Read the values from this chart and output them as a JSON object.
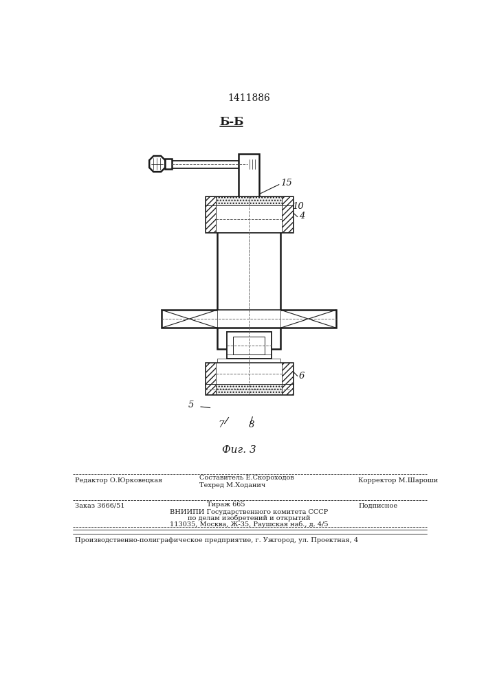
{
  "patent_number": "1411886",
  "section_label": "Б-Б",
  "fig_label": "Фиг. 3",
  "bg_color": "#ffffff",
  "line_color": "#1a1a1a",
  "footer": {
    "editor": "Редактор О.Юрковецкая",
    "compiler": "Составитель Е.Скороходов",
    "techred": "Техред М.Ходанич",
    "corrector": "Корректор М.Шароши",
    "order": "Заказ 3666/51",
    "tirazh": "Тираж 665",
    "podpisnoe": "Подписное",
    "vnipi1": "ВНИИПИ Государственного комитета СССР",
    "vnipi2": "по делам изобретений и открытий",
    "vnipi3": "113035, Москва, Ж-35, Раушская наб., д. 4/5",
    "production": "Производственно-полиграфическое предприятие, г. Ужгород, ул. Проектная, 4"
  }
}
